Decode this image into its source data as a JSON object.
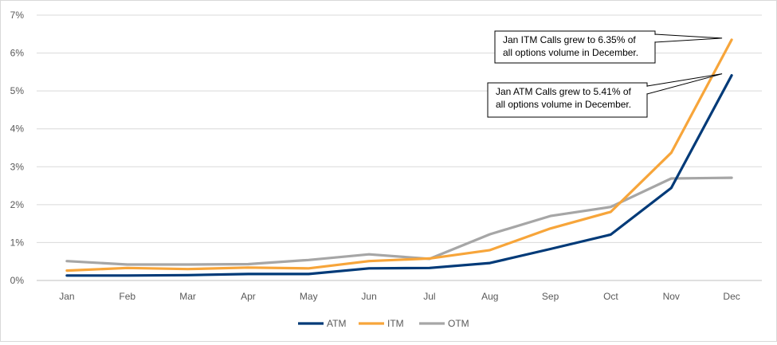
{
  "chart_data": {
    "type": "line",
    "categories": [
      "Jan",
      "Feb",
      "Mar",
      "Apr",
      "May",
      "Jun",
      "Jul",
      "Aug",
      "Sep",
      "Oct",
      "Nov",
      "Dec"
    ],
    "series": [
      {
        "name": "ATM",
        "color": "#003a78",
        "values": [
          0.13,
          0.13,
          0.14,
          0.17,
          0.17,
          0.32,
          0.33,
          0.46,
          0.83,
          1.21,
          2.44,
          5.41
        ]
      },
      {
        "name": "ITM",
        "color": "#f7a53a",
        "values": [
          0.26,
          0.33,
          0.3,
          0.34,
          0.32,
          0.51,
          0.58,
          0.8,
          1.37,
          1.81,
          3.37,
          6.35
        ]
      },
      {
        "name": "OTM",
        "color": "#a6a6a6",
        "values": [
          0.51,
          0.42,
          0.42,
          0.43,
          0.54,
          0.69,
          0.57,
          1.22,
          1.7,
          1.94,
          2.69,
          2.71
        ]
      }
    ],
    "y_ticks": [
      "0%",
      "1%",
      "2%",
      "3%",
      "4%",
      "5%",
      "6%",
      "7%"
    ],
    "ylim": [
      0,
      7
    ],
    "grid": true,
    "legend": "bottom",
    "annotations": [
      {
        "series": "ITM",
        "category": "Dec",
        "lines": [
          "Jan ITM Calls grew to 6.35% of",
          "all options volume in December."
        ]
      },
      {
        "series": "ATM",
        "category": "Dec",
        "lines": [
          "Jan ATM Calls grew to 5.41% of",
          "all options volume in December."
        ]
      }
    ]
  }
}
